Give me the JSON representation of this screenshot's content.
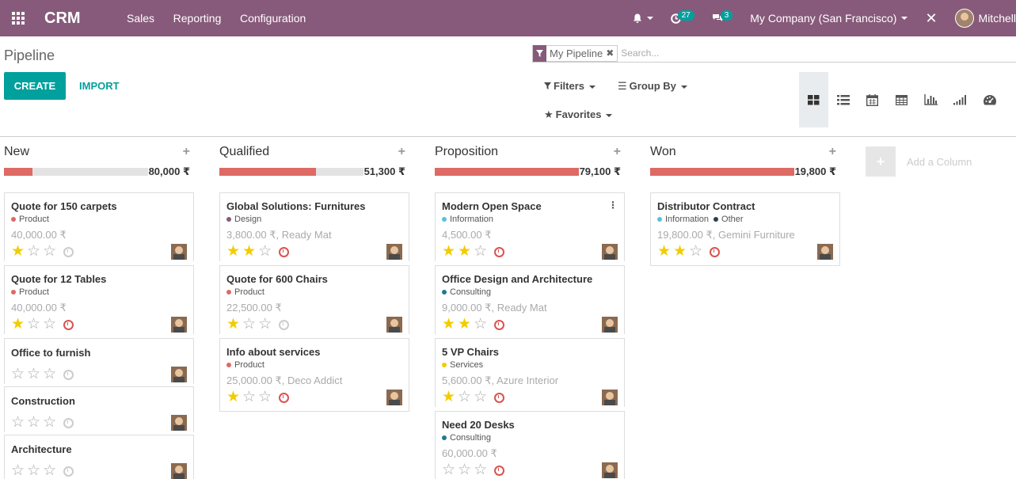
{
  "topbar": {
    "brand": "CRM",
    "menu": [
      "Sales",
      "Reporting",
      "Configuration"
    ],
    "activity_count": "27",
    "message_count": "3",
    "company": "My Company (San Francisco)",
    "user": "Mitchell"
  },
  "control": {
    "breadcrumb": "Pipeline",
    "create_label": "CREATE",
    "import_label": "IMPORT",
    "facet_value": "My Pipeline",
    "search_placeholder": "Search...",
    "filters_label": "Filters",
    "groupby_label": "Group By",
    "favorites_label": "Favorites",
    "views": [
      {
        "icon": "kanban-icon",
        "active": true
      },
      {
        "icon": "list-icon",
        "active": false
      },
      {
        "icon": "calendar-icon",
        "active": false
      },
      {
        "icon": "pivot-icon",
        "active": false
      },
      {
        "icon": "graph-icon",
        "active": false
      },
      {
        "icon": "cohort-icon",
        "active": false
      },
      {
        "icon": "dashboard-icon",
        "active": false
      }
    ]
  },
  "kanban": {
    "add_column_label": "Add a Column",
    "columns": [
      {
        "title": "New",
        "sum": "80,000 ₹",
        "progress": 0.2,
        "cards": [
          {
            "title": "Quote for 150 carpets",
            "tags": [
              {
                "name": "Product",
                "color": "#dd6a64"
              }
            ],
            "amount": "40,000.00 ₹",
            "stars": 1,
            "clock": "grey"
          },
          {
            "title": "Quote for 12 Tables",
            "tags": [
              {
                "name": "Product",
                "color": "#dd6a64"
              }
            ],
            "amount": "40,000.00 ₹",
            "stars": 1,
            "clock": "red"
          },
          {
            "title": "Office to furnish",
            "tags": [],
            "amount": "",
            "stars": 0,
            "clock": "grey"
          },
          {
            "title": "Construction",
            "tags": [],
            "amount": "",
            "stars": 0,
            "clock": "grey"
          },
          {
            "title": "Architecture",
            "tags": [],
            "amount": "",
            "stars": 0,
            "clock": "grey"
          }
        ]
      },
      {
        "title": "Qualified",
        "sum": "51,300 ₹",
        "progress": 0.67,
        "cards": [
          {
            "title": "Global Solutions: Furnitures",
            "tags": [
              {
                "name": "Design",
                "color": "#875a7b"
              }
            ],
            "amount": "3,800.00 ₹, Ready Mat",
            "stars": 2,
            "clock": "red"
          },
          {
            "title": "Quote for 600 Chairs",
            "tags": [
              {
                "name": "Product",
                "color": "#dd6a64"
              }
            ],
            "amount": "22,500.00 ₹",
            "stars": 1,
            "clock": "grey"
          },
          {
            "title": "Info about services",
            "tags": [
              {
                "name": "Product",
                "color": "#dd6a64"
              }
            ],
            "amount": "25,000.00 ₹, Deco Addict",
            "stars": 1,
            "clock": "red"
          }
        ]
      },
      {
        "title": "Proposition",
        "sum": "79,100 ₹",
        "progress": 1.0,
        "cards": [
          {
            "title": "Modern Open Space",
            "tags": [
              {
                "name": "Information",
                "color": "#5bc0de"
              }
            ],
            "amount": "4,500.00 ₹",
            "stars": 2,
            "clock": "red",
            "menu": true
          },
          {
            "title": "Office Design and Architecture",
            "tags": [
              {
                "name": "Consulting",
                "color": "#1f7a8c"
              }
            ],
            "amount": "9,000.00 ₹, Ready Mat",
            "stars": 2,
            "clock": "red"
          },
          {
            "title": "5 VP Chairs",
            "tags": [
              {
                "name": "Services",
                "color": "#f3cc00"
              }
            ],
            "amount": "5,600.00 ₹, Azure Interior",
            "stars": 1,
            "clock": "red"
          },
          {
            "title": "Need 20 Desks",
            "tags": [
              {
                "name": "Consulting",
                "color": "#1f7a8c"
              }
            ],
            "amount": "60,000.00 ₹",
            "stars": 0,
            "clock": "red"
          }
        ]
      },
      {
        "title": "Won",
        "sum": "19,800 ₹",
        "progress": 1.0,
        "cards": [
          {
            "title": "Distributor Contract",
            "tags": [
              {
                "name": "Information",
                "color": "#5bc0de"
              },
              {
                "name": "Other",
                "color": "#2c3e50"
              }
            ],
            "amount": "19,800.00 ₹, Gemini Furniture",
            "stars": 2,
            "clock": "red"
          }
        ]
      }
    ]
  }
}
